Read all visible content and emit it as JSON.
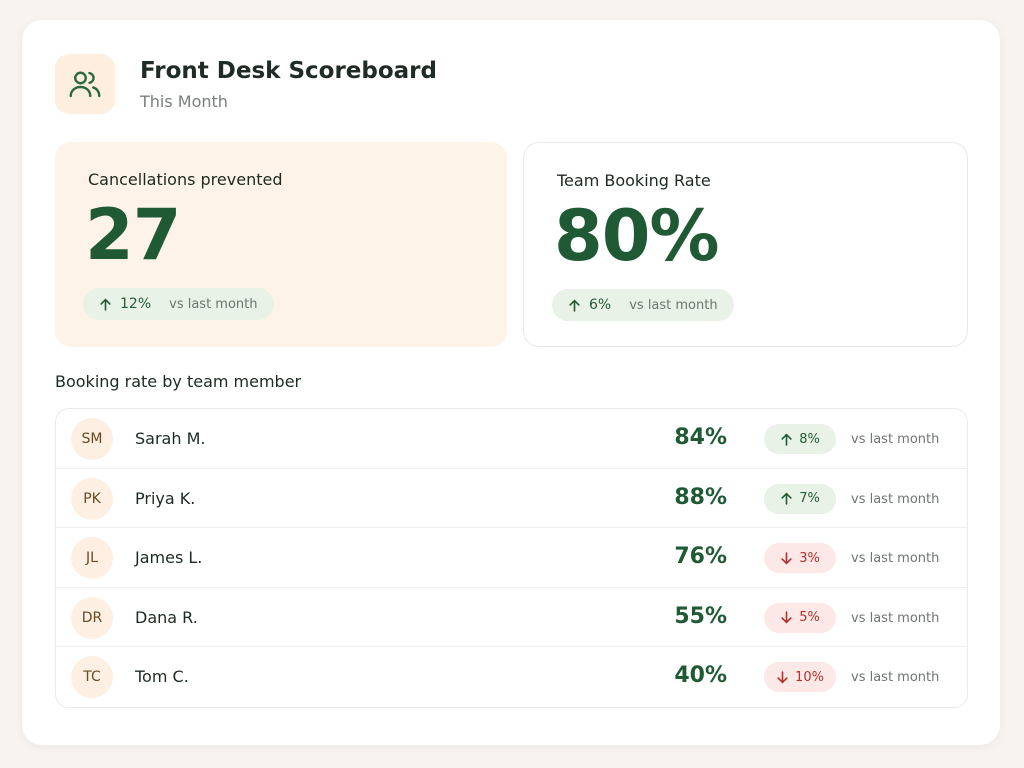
{
  "header": {
    "title": "Front Desk Scoreboard",
    "subtitle": "This Month"
  },
  "kpis": [
    {
      "label": "Cancellations prevented",
      "value": "27",
      "change": "12%",
      "trend": "up",
      "comparison": "vs last month"
    },
    {
      "label": "Team Booking Rate",
      "value": "80%",
      "change": "6%",
      "trend": "up",
      "comparison": "vs last month"
    }
  ],
  "team": {
    "heading": "Booking rate by team member",
    "rows": [
      {
        "initials": "SM",
        "name": "Sarah M.",
        "rate": "84%",
        "change": "8%",
        "trend": "up",
        "comparison": "vs last month"
      },
      {
        "initials": "PK",
        "name": "Priya K.",
        "rate": "88%",
        "change": "7%",
        "trend": "up",
        "comparison": "vs last month"
      },
      {
        "initials": "JL",
        "name": "James L.",
        "rate": "76%",
        "change": "3%",
        "trend": "down",
        "comparison": "vs last month"
      },
      {
        "initials": "DR",
        "name": "Dana R.",
        "rate": "55%",
        "change": "5%",
        "trend": "down",
        "comparison": "vs last month"
      },
      {
        "initials": "TC",
        "name": "Tom C.",
        "rate": "40%",
        "change": "10%",
        "trend": "down",
        "comparison": "vs last month"
      }
    ]
  }
}
